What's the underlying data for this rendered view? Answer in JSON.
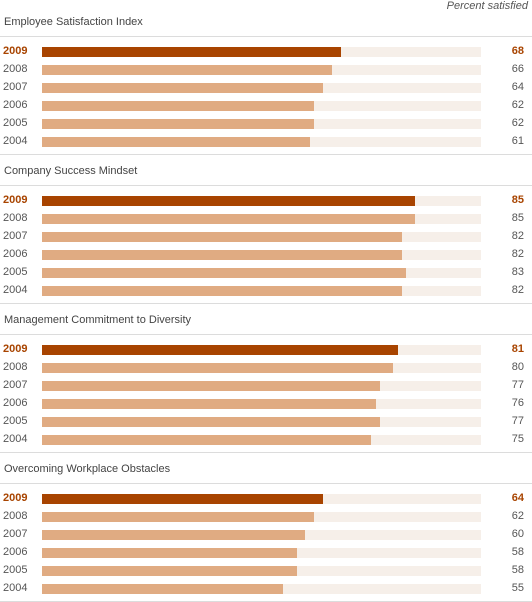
{
  "header_note": "Percent satisfied",
  "colors": {
    "highlight": "#a84400",
    "bar": "#e0ab82",
    "track": "#f6efe9"
  },
  "chart_data": [
    {
      "type": "bar",
      "title": "Employee Satisfaction Index",
      "categories": [
        "2009",
        "2008",
        "2007",
        "2006",
        "2005",
        "2004"
      ],
      "values": [
        68,
        66,
        64,
        62,
        62,
        61
      ],
      "highlight": "2009",
      "ylim": [
        0,
        100
      ]
    },
    {
      "type": "bar",
      "title": "Company Success Mindset",
      "categories": [
        "2009",
        "2008",
        "2007",
        "2006",
        "2005",
        "2004"
      ],
      "values": [
        85,
        85,
        82,
        82,
        83,
        82
      ],
      "highlight": "2009",
      "ylim": [
        0,
        100
      ]
    },
    {
      "type": "bar",
      "title": "Management Commitment to Diversity",
      "categories": [
        "2009",
        "2008",
        "2007",
        "2006",
        "2005",
        "2004"
      ],
      "values": [
        81,
        80,
        77,
        76,
        77,
        75
      ],
      "highlight": "2009",
      "ylim": [
        0,
        100
      ]
    },
    {
      "type": "bar",
      "title": "Overcoming Workplace Obstacles",
      "categories": [
        "2009",
        "2008",
        "2007",
        "2006",
        "2005",
        "2004"
      ],
      "values": [
        64,
        62,
        60,
        58,
        58,
        55
      ],
      "highlight": "2009",
      "ylim": [
        0,
        100
      ]
    }
  ]
}
